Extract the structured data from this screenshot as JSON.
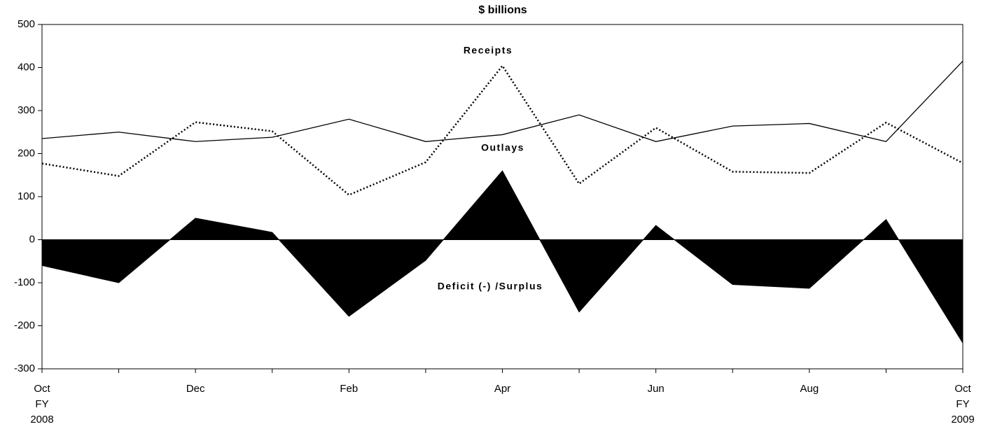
{
  "chart_data": {
    "type": "line",
    "title": "$ billions",
    "categories": [
      "Oct\nFY\n2008",
      null,
      "Dec",
      null,
      "Feb",
      null,
      "Apr",
      null,
      "Jun",
      null,
      "Aug",
      null,
      "Oct\nFY\n2009"
    ],
    "series": [
      {
        "name": "Receipts",
        "color": "#000000",
        "style": "dotted",
        "values": [
          177,
          148,
          273,
          252,
          104,
          180,
          404,
          130,
          260,
          158,
          155,
          272,
          178
        ]
      },
      {
        "name": "Outlays",
        "color": "#000000",
        "style": "solid",
        "values": [
          235,
          250,
          228,
          238,
          280,
          228,
          244,
          290,
          228,
          264,
          270,
          228,
          415
        ]
      },
      {
        "name": "Deficit (-) /Surplus",
        "color": "#000000",
        "style": "area",
        "values": [
          -60,
          -100,
          50,
          17,
          -178,
          -48,
          160,
          -168,
          33,
          -104,
          -113,
          47,
          -240
        ]
      }
    ],
    "ylim": [
      -300,
      500
    ],
    "yticks": [
      -300,
      -200,
      -100,
      0,
      100,
      200,
      300,
      400,
      500
    ],
    "grid": false
  }
}
